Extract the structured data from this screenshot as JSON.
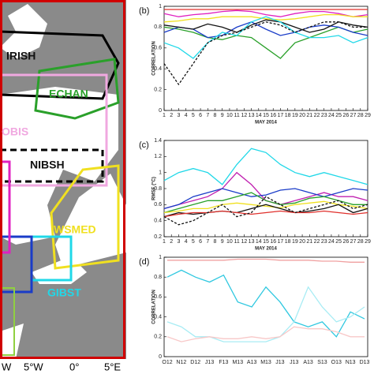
{
  "map": {
    "regions": [
      "IRISH",
      "ECHAN",
      "OBIS",
      "NIBSH",
      "WSMED",
      "GIBST"
    ],
    "lon_labels": [
      "W",
      "5°W",
      "0°",
      "5°E"
    ]
  },
  "chart_data": [
    {
      "type": "line",
      "panel": "(b)",
      "ylabel": "CORRELATION",
      "xlabel": "MAY 2014",
      "x": [
        1,
        3,
        5,
        7,
        9,
        11,
        13,
        15,
        17,
        19,
        21,
        23,
        25,
        27,
        29
      ],
      "xlim": [
        1,
        29
      ],
      "xticks": [
        1,
        2,
        3,
        4,
        5,
        6,
        7,
        8,
        9,
        10,
        11,
        12,
        13,
        14,
        15,
        16,
        17,
        18,
        19,
        20,
        21,
        22,
        23,
        24,
        25,
        26,
        27,
        28,
        29
      ],
      "ylim": [
        0,
        1
      ],
      "yticks": [
        0,
        0.2,
        0.4,
        0.6,
        0.8,
        1
      ],
      "series": [
        {
          "color": "#e0302c",
          "dash": false,
          "values": [
            0.97,
            0.97,
            0.97,
            0.97,
            0.97,
            0.97,
            0.97,
            0.97,
            0.97,
            0.97,
            0.97,
            0.97,
            0.97,
            0.97,
            0.97
          ]
        },
        {
          "color": "#e020c0",
          "dash": false,
          "values": [
            0.93,
            0.9,
            0.92,
            0.93,
            0.95,
            0.96,
            0.95,
            0.92,
            0.9,
            0.93,
            0.95,
            0.95,
            0.93,
            0.9,
            0.92
          ]
        },
        {
          "color": "#f0e020",
          "dash": false,
          "values": [
            0.85,
            0.86,
            0.88,
            0.88,
            0.9,
            0.9,
            0.9,
            0.88,
            0.87,
            0.88,
            0.9,
            0.92,
            0.92,
            0.9,
            0.9
          ]
        },
        {
          "color": "#2aa02a",
          "dash": false,
          "values": [
            0.8,
            0.78,
            0.75,
            0.7,
            0.68,
            0.72,
            0.7,
            0.6,
            0.5,
            0.65,
            0.7,
            0.75,
            0.8,
            0.75,
            0.78
          ]
        },
        {
          "color": "#1a3cc8",
          "dash": false,
          "values": [
            0.75,
            0.8,
            0.78,
            0.7,
            0.72,
            0.8,
            0.85,
            0.78,
            0.72,
            0.75,
            0.8,
            0.82,
            0.8,
            0.75,
            0.72
          ]
        },
        {
          "color": "#111111",
          "dash": false,
          "values": [
            0.82,
            0.8,
            0.78,
            0.83,
            0.8,
            0.75,
            0.82,
            0.87,
            0.85,
            0.8,
            0.75,
            0.78,
            0.85,
            0.82,
            0.8
          ]
        },
        {
          "color": "#20d8e8",
          "dash": false,
          "values": [
            0.65,
            0.6,
            0.5,
            0.65,
            0.75,
            0.72,
            0.85,
            0.9,
            0.85,
            0.75,
            0.7,
            0.7,
            0.72,
            0.65,
            0.7
          ]
        },
        {
          "color": "#111111",
          "dash": true,
          "values": [
            0.45,
            0.25,
            0.45,
            0.65,
            0.72,
            0.75,
            0.8,
            0.85,
            0.82,
            0.75,
            0.8,
            0.85,
            0.85,
            0.8,
            0.8
          ]
        }
      ]
    },
    {
      "type": "line",
      "panel": "(c)",
      "ylabel": "RMSE (°C)",
      "xlabel": "MAY 2014",
      "x": [
        1,
        3,
        5,
        7,
        9,
        11,
        13,
        15,
        17,
        19,
        21,
        23,
        25,
        27,
        29
      ],
      "xlim": [
        1,
        29
      ],
      "xticks": [
        1,
        2,
        3,
        4,
        5,
        6,
        7,
        8,
        9,
        10,
        11,
        12,
        13,
        14,
        15,
        16,
        17,
        18,
        19,
        20,
        21,
        22,
        23,
        24,
        25,
        26,
        27,
        28,
        29
      ],
      "ylim": [
        0.2,
        1.4
      ],
      "yticks": [
        0.2,
        0.4,
        0.6,
        0.8,
        1,
        1.2,
        1.4
      ],
      "series": [
        {
          "color": "#20d8e8",
          "dash": false,
          "values": [
            0.9,
            1.0,
            1.05,
            1.0,
            0.85,
            1.1,
            1.3,
            1.25,
            1.1,
            1.0,
            0.95,
            1.0,
            0.95,
            0.9,
            0.85
          ]
        },
        {
          "color": "#c020b0",
          "dash": false,
          "values": [
            0.55,
            0.6,
            0.65,
            0.7,
            0.8,
            1.0,
            0.85,
            0.65,
            0.6,
            0.65,
            0.7,
            0.75,
            0.7,
            0.7,
            0.65
          ]
        },
        {
          "color": "#1a3cc8",
          "dash": false,
          "values": [
            0.55,
            0.6,
            0.7,
            0.75,
            0.8,
            0.75,
            0.7,
            0.72,
            0.78,
            0.8,
            0.75,
            0.7,
            0.75,
            0.8,
            0.78
          ]
        },
        {
          "color": "#2aa02a",
          "dash": false,
          "values": [
            0.5,
            0.55,
            0.6,
            0.65,
            0.65,
            0.7,
            0.75,
            0.65,
            0.6,
            0.62,
            0.68,
            0.7,
            0.65,
            0.6,
            0.6
          ]
        },
        {
          "color": "#f0e020",
          "dash": false,
          "values": [
            0.5,
            0.52,
            0.55,
            0.55,
            0.6,
            0.62,
            0.6,
            0.58,
            0.56,
            0.6,
            0.62,
            0.64,
            0.6,
            0.58,
            0.55
          ]
        },
        {
          "color": "#111111",
          "dash": false,
          "values": [
            0.45,
            0.5,
            0.48,
            0.5,
            0.52,
            0.5,
            0.55,
            0.6,
            0.55,
            0.5,
            0.52,
            0.55,
            0.6,
            0.5,
            0.55
          ]
        },
        {
          "color": "#e0302c",
          "dash": false,
          "values": [
            0.45,
            0.48,
            0.5,
            0.5,
            0.52,
            0.5,
            0.48,
            0.5,
            0.52,
            0.5,
            0.5,
            0.52,
            0.5,
            0.48,
            0.5
          ]
        },
        {
          "color": "#111111",
          "dash": true,
          "values": [
            0.45,
            0.35,
            0.4,
            0.5,
            0.6,
            0.45,
            0.5,
            0.7,
            0.6,
            0.5,
            0.55,
            0.6,
            0.65,
            0.55,
            0.6
          ]
        }
      ]
    },
    {
      "type": "line",
      "panel": "(d)",
      "ylabel": "CORRELATION",
      "categories": [
        "O12",
        "N12",
        "D12",
        "J13",
        "F13",
        "M13",
        "A13",
        "M13",
        "J13",
        "J13",
        "A13",
        "S13",
        "O13",
        "N13",
        "D13"
      ],
      "ylim": [
        0,
        1
      ],
      "yticks": [
        0,
        0.2,
        0.4,
        0.6,
        0.8,
        1
      ],
      "series": [
        {
          "color": "#f0a0a0",
          "dash": false,
          "values": [
            0.97,
            0.97,
            0.97,
            0.97,
            0.97,
            0.98,
            0.98,
            0.98,
            0.97,
            0.97,
            0.97,
            0.96,
            0.96,
            0.95,
            0.95
          ]
        },
        {
          "color": "#30c8e0",
          "dash": false,
          "values": [
            0.8,
            0.87,
            0.8,
            0.75,
            0.82,
            0.55,
            0.5,
            0.7,
            0.55,
            0.35,
            0.3,
            0.35,
            0.2,
            0.45,
            0.38
          ]
        },
        {
          "color": "#a8ecf4",
          "dash": false,
          "values": [
            0.35,
            0.3,
            0.2,
            0.2,
            0.15,
            0.15,
            0.15,
            0.15,
            0.2,
            0.35,
            0.7,
            0.5,
            0.35,
            0.4,
            0.5
          ]
        },
        {
          "color": "#f8c8c8",
          "dash": false,
          "values": [
            0.2,
            0.15,
            0.18,
            0.2,
            0.18,
            0.18,
            0.2,
            0.18,
            0.2,
            0.3,
            0.28,
            0.28,
            0.25,
            0.2,
            0.2
          ]
        }
      ]
    }
  ]
}
